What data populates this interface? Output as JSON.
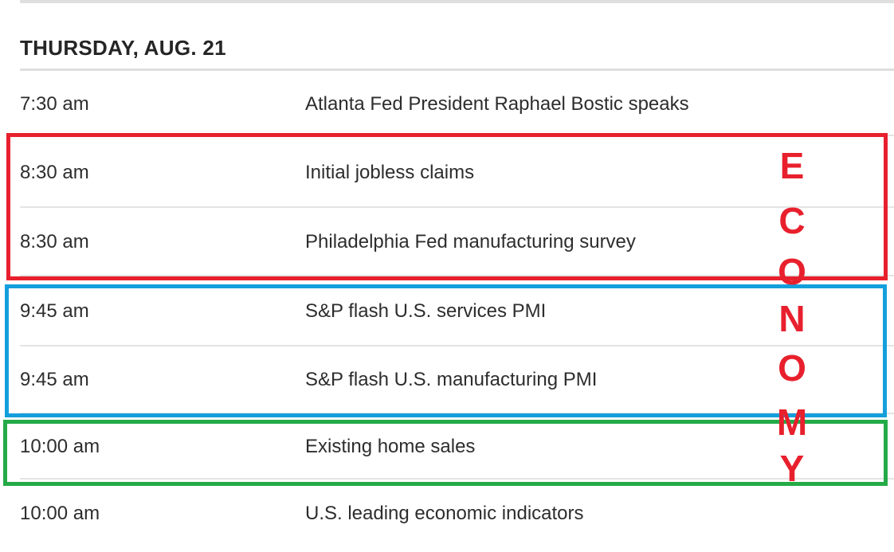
{
  "page": {
    "heading": "THURSDAY, AUG. 21"
  },
  "schedule": {
    "rows": [
      {
        "time": "7:30 am",
        "event": "Atlanta Fed President Raphael Bostic speaks",
        "group": "none"
      },
      {
        "time": "8:30 am",
        "event": "Initial jobless claims",
        "group": "red"
      },
      {
        "time": "8:30 am",
        "event": "Philadelphia Fed manufacturing survey",
        "group": "red"
      },
      {
        "time": "9:45 am",
        "event": "S&P flash U.S. services PMI",
        "group": "blue"
      },
      {
        "time": "9:45 am",
        "event": "S&P flash U.S. manufacturing PMI",
        "group": "blue"
      },
      {
        "time": "10:00 am",
        "event": "Existing home sales",
        "group": "green"
      },
      {
        "time": "10:00 am",
        "event": "U.S. leading economic indicators",
        "group": "none"
      }
    ]
  },
  "annotation": {
    "vertical_label": "ECONOMY",
    "letters": [
      "E",
      "C",
      "O",
      "N",
      "O",
      "M",
      "Y"
    ],
    "colors": {
      "red_box": "#e8202d",
      "blue_box": "#149fdc",
      "green_box": "#24aa47",
      "letter_color": "#e8202d"
    }
  }
}
